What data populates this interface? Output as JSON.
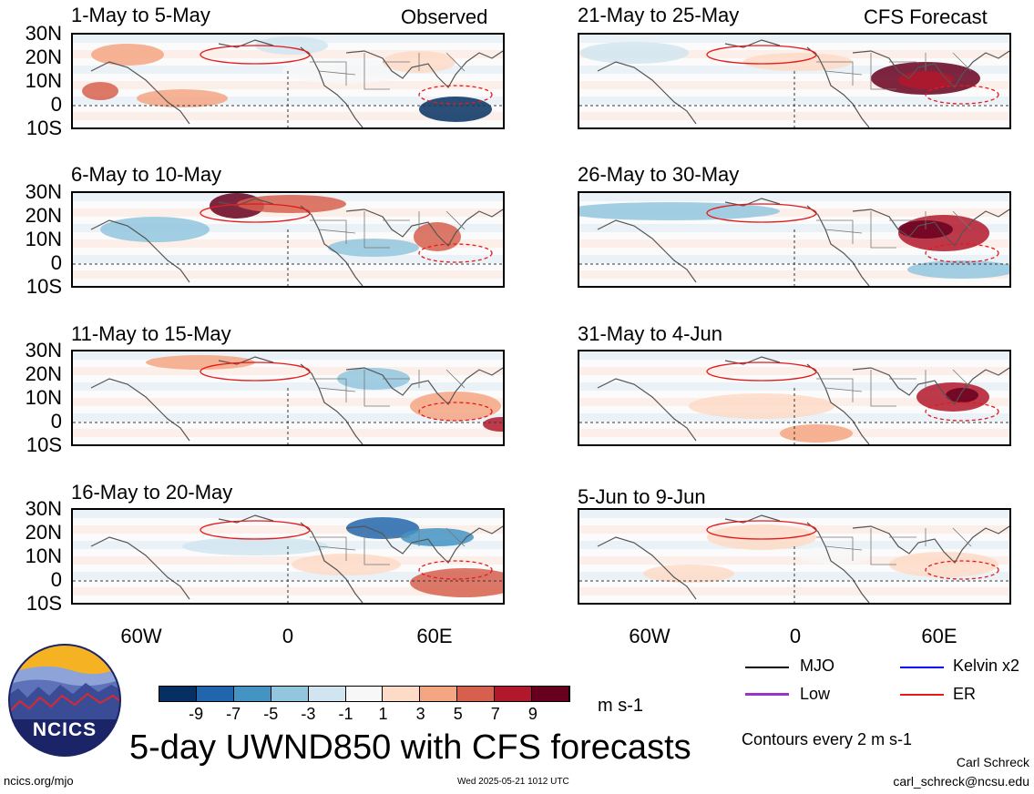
{
  "left_column": {
    "heading": "Observed"
  },
  "right_column": {
    "heading": "CFS Forecast"
  },
  "panels": [
    {
      "id": "p1",
      "title": "1-May to 5-May"
    },
    {
      "id": "p2",
      "title": "6-May to 10-May"
    },
    {
      "id": "p3",
      "title": "11-May to 15-May"
    },
    {
      "id": "p4",
      "title": "16-May to 20-May"
    },
    {
      "id": "p5",
      "title": "21-May to 25-May"
    },
    {
      "id": "p6",
      "title": "26-May to 30-May"
    },
    {
      "id": "p7",
      "title": "31-May to 4-Jun"
    },
    {
      "id": "p8",
      "title": "5-Jun to 9-Jun"
    }
  ],
  "lat_labels": [
    "30N",
    "20N",
    "10N",
    "0",
    "10S"
  ],
  "lon_labels": [
    "60W",
    "0",
    "60E"
  ],
  "colorbar": {
    "labels": [
      "-9",
      "-7",
      "-5",
      "-3",
      "-1",
      "1",
      "3",
      "5",
      "7",
      "9"
    ],
    "colors": [
      "#053061",
      "#2166ac",
      "#4393c3",
      "#92c5de",
      "#d1e5f0",
      "#f7f7f7",
      "#fddbc7",
      "#f4a582",
      "#d6604d",
      "#b2182b",
      "#67001f"
    ],
    "units": "m s-1"
  },
  "legend": {
    "mjo": "MJO",
    "kelvin": "Kelvin x2",
    "low": "Low",
    "er": "ER",
    "colors": {
      "mjo": "#000000",
      "kelvin": "#0000ff",
      "low": "#9933cc",
      "er": "#e41a1c"
    }
  },
  "contour_note": "Contours every 2 m s-1",
  "main_title": "5-day UWND850 with CFS forecasts",
  "logo_text": "NCICS",
  "footer": {
    "url": "ncics.org/mjo",
    "timestamp": "Wed 2025-05-21 1012 UTC",
    "author": "Carl Schreck",
    "email": "carl_schreck@ncsu.edu"
  }
}
